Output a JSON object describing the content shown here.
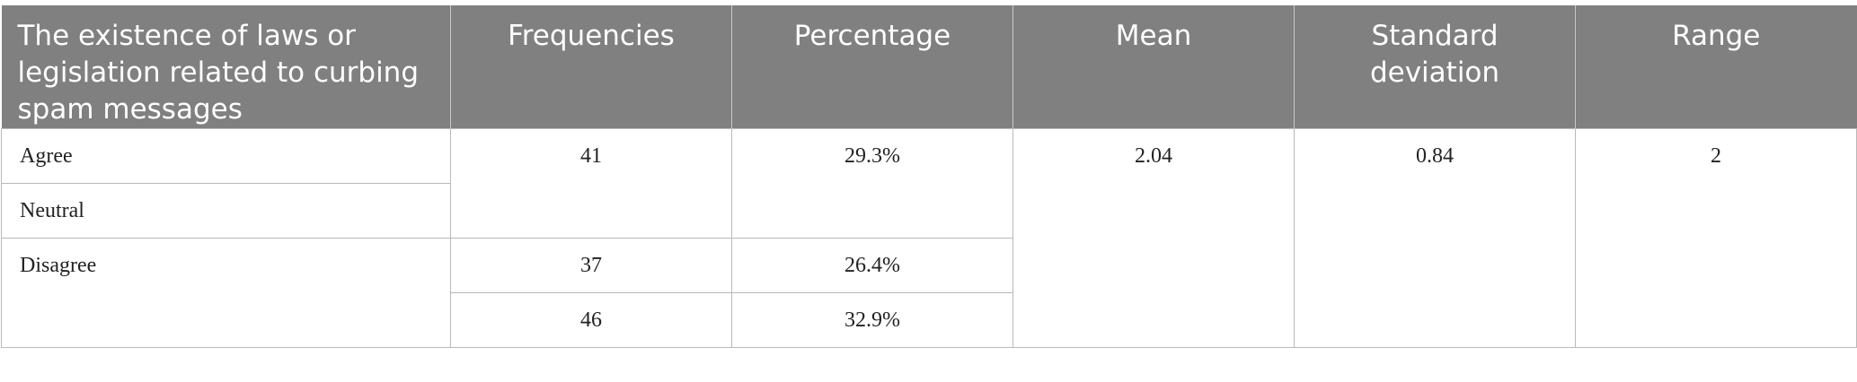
{
  "table": {
    "header": [
      "The existence of laws or legislation related to curbing spam messages",
      "Frequencies",
      "Percentage",
      "Mean",
      "Standard deviation",
      "Range"
    ],
    "rows": [
      [
        "Agree",
        "41",
        "29.3%",
        "2.04",
        "0.84",
        "2"
      ],
      [
        "Neutral"
      ],
      [
        "Disagree",
        "37",
        "26.4%"
      ],
      [
        "46",
        "32.9%"
      ]
    ]
  }
}
